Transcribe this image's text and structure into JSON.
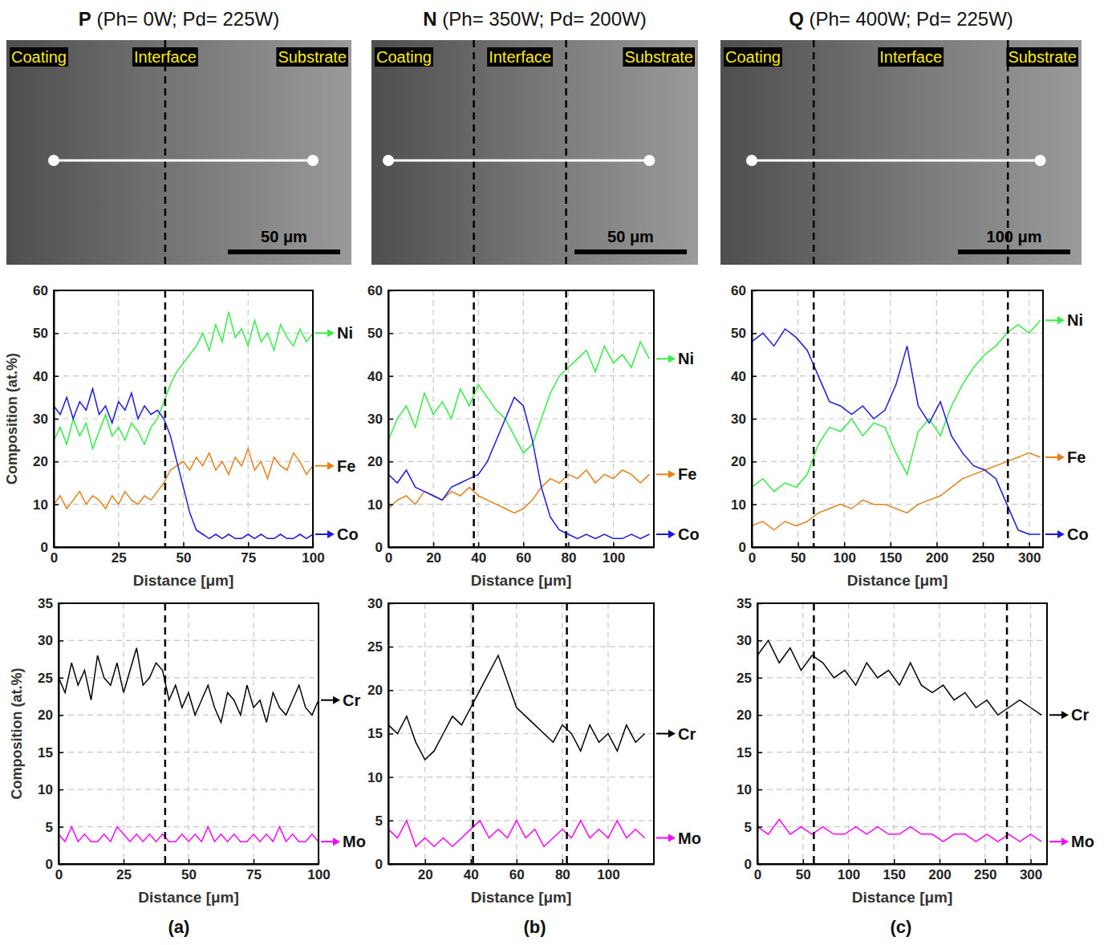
{
  "panels": [
    {
      "title": "P (Ph= 0W; Pd= 225W)",
      "letter": "(a)",
      "image_labels": [
        "Coating",
        "Interface",
        "Substrate"
      ],
      "scale_bar": "50 μm"
    },
    {
      "title": "N (Ph= 350W; Pd= 200W)",
      "letter": "(b)",
      "image_labels": [
        "Coating",
        "Interface",
        "Substrate"
      ],
      "scale_bar": "50 μm"
    },
    {
      "title": "Q (Ph= 400W; Pd= 225W)",
      "letter": "(c)",
      "image_labels": [
        "Coating",
        "Interface",
        "Substrate"
      ],
      "scale_bar": "100 μm"
    }
  ],
  "chart_data": [
    {
      "type": "line",
      "xlabel": "Distance [μm]",
      "ylabel": "Composition (at.%)",
      "xlim": [
        0,
        100
      ],
      "ylim": [
        0,
        60
      ],
      "xticks": [
        0,
        25,
        50,
        75,
        100
      ],
      "yticks": [
        0,
        10,
        20,
        30,
        40,
        50,
        60
      ],
      "grid": true,
      "legend": "right",
      "vlines": [
        43
      ],
      "x": [
        0,
        2.5,
        5,
        7.5,
        10,
        12.5,
        15,
        17.5,
        20,
        22.5,
        25,
        27.5,
        30,
        32.5,
        35,
        37.5,
        40,
        42.5,
        45,
        47.5,
        50,
        52.5,
        55,
        57.5,
        60,
        62.5,
        65,
        67.5,
        70,
        72.5,
        75,
        77.5,
        80,
        82.5,
        85,
        87.5,
        90,
        92.5,
        95,
        97.5,
        100
      ],
      "series": [
        {
          "name": "Ni",
          "color": "#33ee44",
          "values": [
            25,
            28,
            24,
            30,
            26,
            29,
            23,
            27,
            31,
            26,
            28,
            25,
            29,
            27,
            24,
            28,
            30,
            34,
            38,
            41,
            43,
            45,
            47,
            50,
            46,
            52,
            48,
            55,
            49,
            51,
            47,
            53,
            48,
            50,
            46,
            52,
            49,
            47,
            51,
            48,
            50
          ]
        },
        {
          "name": "Fe",
          "color": "#e8801a",
          "values": [
            10,
            12,
            9,
            11,
            13,
            10,
            12,
            11,
            9,
            12,
            10,
            13,
            11,
            10,
            12,
            11,
            13,
            15,
            18,
            19,
            20,
            18,
            21,
            19,
            22,
            18,
            20,
            17,
            21,
            19,
            23,
            18,
            20,
            16,
            21,
            19,
            18,
            22,
            20,
            17,
            19
          ]
        },
        {
          "name": "Co",
          "color": "#1a1ae6",
          "values": [
            33,
            31,
            35,
            30,
            34,
            32,
            37,
            31,
            33,
            29,
            34,
            32,
            36,
            30,
            33,
            31,
            32,
            30,
            26,
            20,
            14,
            8,
            4,
            3,
            2,
            3,
            2,
            3,
            2,
            2,
            3,
            2,
            3,
            2,
            2,
            3,
            2,
            2,
            3,
            2,
            3
          ]
        }
      ]
    },
    {
      "type": "line",
      "xlabel": "Distance [μm]",
      "ylabel": "Composition (at.%)",
      "xlim": [
        0,
        100
      ],
      "ylim": [
        0,
        35
      ],
      "xticks": [
        0,
        25,
        50,
        75,
        100
      ],
      "yticks": [
        0,
        5,
        10,
        15,
        20,
        25,
        30,
        35
      ],
      "grid": true,
      "legend": "right",
      "vlines": [
        41
      ],
      "x": [
        0,
        2.5,
        5,
        7.5,
        10,
        12.5,
        15,
        17.5,
        20,
        22.5,
        25,
        27.5,
        30,
        32.5,
        35,
        37.5,
        40,
        42.5,
        45,
        47.5,
        50,
        52.5,
        55,
        57.5,
        60,
        62.5,
        65,
        67.5,
        70,
        72.5,
        75,
        77.5,
        80,
        82.5,
        85,
        87.5,
        90,
        92.5,
        95,
        97.5,
        100
      ],
      "series": [
        {
          "name": "Cr",
          "color": "#000000",
          "values": [
            25,
            23,
            27,
            24,
            26,
            22,
            28,
            25,
            24,
            27,
            23,
            26,
            29,
            24,
            25,
            27,
            26,
            22,
            24,
            21,
            23,
            20,
            22,
            24,
            21,
            19,
            23,
            22,
            20,
            24,
            21,
            22,
            19,
            23,
            21,
            20,
            22,
            24,
            21,
            20,
            22
          ]
        },
        {
          "name": "Mo",
          "color": "#ff00ff",
          "values": [
            4,
            3,
            5,
            3,
            4,
            3,
            3,
            4,
            3,
            5,
            4,
            3,
            4,
            3,
            4,
            3,
            4,
            3,
            3,
            4,
            3,
            4,
            3,
            5,
            3,
            4,
            3,
            4,
            3,
            3,
            4,
            3,
            4,
            3,
            5,
            3,
            4,
            3,
            3,
            4,
            3
          ]
        }
      ]
    },
    {
      "type": "line",
      "xlabel": "Distance [μm]",
      "xlim": [
        0,
        118
      ],
      "ylim": [
        0,
        60
      ],
      "xticks": [
        0,
        20,
        40,
        60,
        80,
        100
      ],
      "yticks": [
        0,
        10,
        20,
        30,
        40,
        50,
        60
      ],
      "grid": true,
      "legend": "right",
      "vlines": [
        38,
        79
      ],
      "x": [
        0,
        4,
        8,
        12,
        16,
        20,
        24,
        28,
        32,
        36,
        40,
        44,
        48,
        52,
        56,
        60,
        64,
        68,
        72,
        76,
        80,
        84,
        88,
        92,
        96,
        100,
        104,
        108,
        112,
        116
      ],
      "series": [
        {
          "name": "Ni",
          "color": "#33ee44",
          "values": [
            25,
            30,
            33,
            28,
            36,
            31,
            34,
            30,
            37,
            33,
            38,
            35,
            32,
            30,
            26,
            22,
            24,
            30,
            36,
            40,
            42,
            44,
            46,
            41,
            47,
            43,
            45,
            42,
            48,
            44
          ]
        },
        {
          "name": "Fe",
          "color": "#e8801a",
          "values": [
            9,
            11,
            12,
            10,
            13,
            12,
            11,
            13,
            12,
            14,
            12,
            11,
            10,
            9,
            8,
            9,
            11,
            14,
            16,
            15,
            17,
            16,
            18,
            15,
            17,
            16,
            18,
            17,
            15,
            17
          ]
        },
        {
          "name": "Co",
          "color": "#1a1ae6",
          "values": [
            17,
            15,
            18,
            14,
            13,
            12,
            11,
            14,
            15,
            16,
            17,
            20,
            25,
            30,
            35,
            33,
            25,
            14,
            7,
            4,
            3,
            2,
            3,
            2,
            3,
            2,
            2,
            3,
            2,
            3
          ]
        }
      ]
    },
    {
      "type": "line",
      "xlabel": "Distance [μm]",
      "xlim": [
        4,
        120
      ],
      "ylim": [
        0,
        30
      ],
      "xticks": [
        20,
        40,
        60,
        80,
        100
      ],
      "yticks": [
        0,
        5,
        10,
        15,
        20,
        25,
        30
      ],
      "grid": true,
      "legend": "right",
      "vlines": [
        41,
        82
      ],
      "x": [
        4,
        8,
        12,
        16,
        20,
        24,
        28,
        32,
        36,
        40,
        44,
        48,
        52,
        56,
        60,
        64,
        68,
        72,
        76,
        80,
        84,
        88,
        92,
        96,
        100,
        104,
        108,
        112,
        116
      ],
      "series": [
        {
          "name": "Cr",
          "color": "#000000",
          "values": [
            16,
            15,
            17,
            14,
            12,
            13,
            15,
            17,
            16,
            18,
            20,
            22,
            24,
            21,
            18,
            17,
            16,
            15,
            14,
            16,
            15,
            13,
            16,
            14,
            15,
            13,
            16,
            14,
            15
          ]
        },
        {
          "name": "Mo",
          "color": "#ff00ff",
          "values": [
            4,
            3,
            5,
            2,
            3,
            2,
            3,
            2,
            3,
            4,
            5,
            3,
            4,
            3,
            5,
            3,
            4,
            2,
            3,
            4,
            3,
            5,
            3,
            4,
            3,
            5,
            3,
            4,
            3
          ]
        }
      ]
    },
    {
      "type": "line",
      "xlabel": "Distance [μm]",
      "xlim": [
        0,
        315
      ],
      "ylim": [
        0,
        60
      ],
      "xticks": [
        0,
        50,
        100,
        150,
        200,
        250,
        300
      ],
      "yticks": [
        0,
        10,
        20,
        30,
        40,
        50,
        60
      ],
      "grid": true,
      "legend": "right",
      "vlines": [
        67,
        277
      ],
      "x": [
        0,
        12,
        24,
        36,
        48,
        60,
        72,
        84,
        96,
        108,
        120,
        132,
        144,
        156,
        168,
        180,
        192,
        204,
        216,
        228,
        240,
        252,
        264,
        276,
        288,
        300,
        312
      ],
      "series": [
        {
          "name": "Ni",
          "color": "#33ee44",
          "values": [
            14,
            16,
            13,
            15,
            14,
            17,
            24,
            28,
            27,
            30,
            26,
            29,
            28,
            22,
            17,
            27,
            30,
            26,
            33,
            38,
            42,
            45,
            47,
            50,
            52,
            50,
            53
          ]
        },
        {
          "name": "Fe",
          "color": "#e8801a",
          "values": [
            5,
            6,
            4,
            6,
            5,
            6,
            8,
            9,
            10,
            9,
            11,
            10,
            10,
            9,
            8,
            10,
            11,
            12,
            14,
            16,
            17,
            18,
            19,
            20,
            21,
            22,
            21
          ]
        },
        {
          "name": "Co",
          "color": "#1a1ae6",
          "values": [
            48,
            50,
            47,
            51,
            49,
            46,
            40,
            34,
            33,
            31,
            33,
            30,
            32,
            38,
            47,
            33,
            29,
            34,
            26,
            22,
            19,
            18,
            16,
            10,
            4,
            3,
            3
          ]
        }
      ]
    },
    {
      "type": "line",
      "xlabel": "Distance [μm]",
      "xlim": [
        0,
        318
      ],
      "ylim": [
        0,
        35
      ],
      "xticks": [
        0,
        50,
        100,
        150,
        200,
        250,
        300
      ],
      "yticks": [
        0,
        5,
        10,
        15,
        20,
        25,
        30,
        35
      ],
      "grid": true,
      "legend": "right",
      "vlines": [
        62,
        274
      ],
      "x": [
        0,
        12,
        24,
        36,
        48,
        60,
        72,
        84,
        96,
        108,
        120,
        132,
        144,
        156,
        168,
        180,
        192,
        204,
        216,
        228,
        240,
        252,
        264,
        276,
        288,
        300,
        312
      ],
      "series": [
        {
          "name": "Cr",
          "color": "#000000",
          "values": [
            28,
            30,
            27,
            29,
            26,
            28,
            27,
            25,
            26,
            24,
            27,
            25,
            26,
            24,
            27,
            24,
            23,
            24,
            22,
            23,
            21,
            22,
            20,
            21,
            22,
            21,
            20
          ]
        },
        {
          "name": "Mo",
          "color": "#ff00ff",
          "values": [
            5,
            4,
            6,
            4,
            5,
            4,
            5,
            4,
            4,
            5,
            4,
            5,
            4,
            4,
            5,
            4,
            4,
            3,
            4,
            4,
            3,
            4,
            3,
            4,
            3,
            4,
            3
          ]
        }
      ]
    }
  ]
}
